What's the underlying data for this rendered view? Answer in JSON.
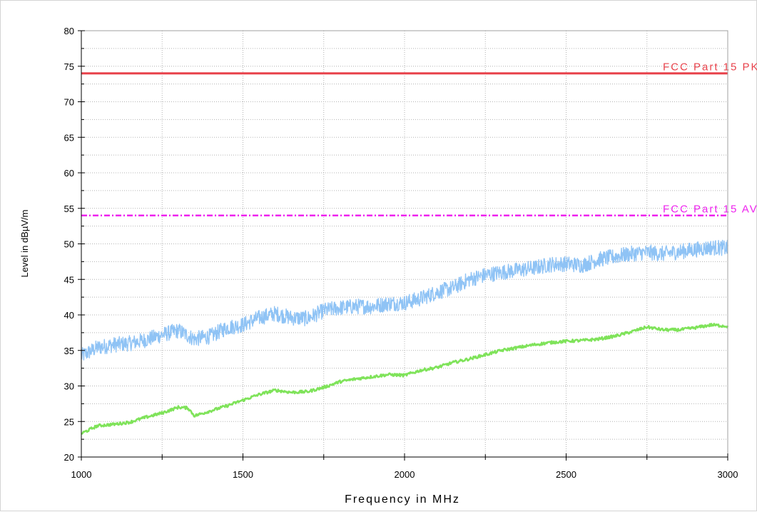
{
  "chart_data": {
    "type": "line",
    "xlabel": "Frequency in MHz",
    "ylabel": "Level in dBµV/m",
    "xlim": [
      1000,
      3000
    ],
    "ylim": [
      20,
      80
    ],
    "x_ticks": [
      1000,
      1500,
      2000,
      2500,
      3000
    ],
    "y_ticks": [
      20,
      25,
      30,
      35,
      40,
      45,
      50,
      55,
      60,
      65,
      70,
      75,
      80
    ],
    "grid": true,
    "limits": [
      {
        "name": "FCC Part 15 PK",
        "value": 74,
        "color": "#e8424b",
        "style": "solid"
      },
      {
        "name": "FCC Part 15 AV",
        "value": 54,
        "color": "#ee22ee",
        "style": "dash-dot"
      }
    ],
    "series": [
      {
        "color": "#8fc3f5",
        "noise": 1.1,
        "x": [
          1000,
          1050,
          1100,
          1150,
          1200,
          1250,
          1300,
          1350,
          1400,
          1450,
          1500,
          1550,
          1600,
          1650,
          1700,
          1750,
          1800,
          1850,
          1900,
          1950,
          2000,
          2050,
          2100,
          2150,
          2200,
          2250,
          2300,
          2350,
          2400,
          2450,
          2500,
          2550,
          2600,
          2650,
          2700,
          2750,
          2800,
          2850,
          2900,
          2950,
          3000
        ],
        "y": [
          34.2,
          35.4,
          35.8,
          36.0,
          36.5,
          37.2,
          37.8,
          36.6,
          37.0,
          38.2,
          38.6,
          39.6,
          40.2,
          39.6,
          39.5,
          40.6,
          41.0,
          41.2,
          41.2,
          41.6,
          41.7,
          42.3,
          43.2,
          43.8,
          45.0,
          45.6,
          46.0,
          46.3,
          46.6,
          47.1,
          47.2,
          47.0,
          47.8,
          48.2,
          48.6,
          48.8,
          48.6,
          48.9,
          49.2,
          49.5,
          49.4
        ]
      },
      {
        "color": "#7fe35a",
        "noise": 0.2,
        "x": [
          1000,
          1050,
          1100,
          1150,
          1200,
          1250,
          1300,
          1330,
          1350,
          1400,
          1450,
          1500,
          1550,
          1600,
          1650,
          1700,
          1750,
          1800,
          1850,
          1900,
          1950,
          2000,
          2050,
          2100,
          2150,
          2200,
          2250,
          2300,
          2350,
          2400,
          2450,
          2500,
          2550,
          2600,
          2650,
          2700,
          2750,
          2800,
          2850,
          2900,
          2950,
          3000
        ],
        "y": [
          23.3,
          24.4,
          24.6,
          24.9,
          25.6,
          26.2,
          27.0,
          26.9,
          25.8,
          26.5,
          27.2,
          28.0,
          28.8,
          29.4,
          29.1,
          29.2,
          29.8,
          30.6,
          31.0,
          31.3,
          31.6,
          31.5,
          32.2,
          32.6,
          33.3,
          33.8,
          34.4,
          35.0,
          35.4,
          35.8,
          36.1,
          36.3,
          36.4,
          36.6,
          37.0,
          37.6,
          38.3,
          37.9,
          37.9,
          38.2,
          38.6,
          38.4
        ]
      }
    ]
  }
}
